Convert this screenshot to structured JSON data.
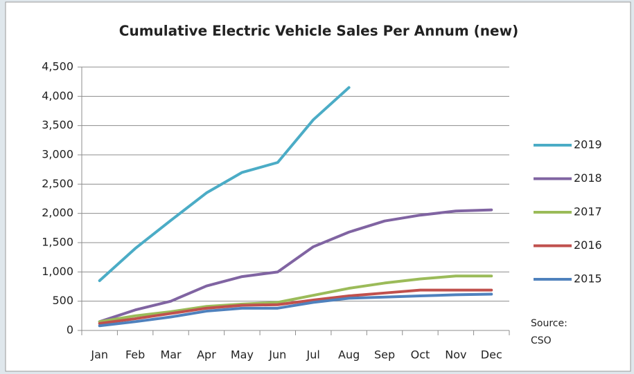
{
  "chart_data": {
    "type": "line",
    "title": "Cumulative Electric Vehicle Sales Per Annum (new)",
    "categories": [
      "Jan",
      "Feb",
      "Mar",
      "Apr",
      "May",
      "Jun",
      "Jul",
      "Aug",
      "Sep",
      "Oct",
      "Nov",
      "Dec"
    ],
    "series": [
      {
        "name": "2019",
        "color": "#4bacc6",
        "values": [
          850,
          1400,
          1880,
          2350,
          2700,
          2870,
          3600,
          4150,
          null,
          null,
          null,
          null
        ]
      },
      {
        "name": "2018",
        "color": "#8064a2",
        "values": [
          150,
          350,
          500,
          760,
          920,
          1000,
          1430,
          1680,
          1870,
          1970,
          2040,
          2060
        ]
      },
      {
        "name": "2017",
        "color": "#9bbb59",
        "values": [
          150,
          250,
          320,
          410,
          450,
          480,
          600,
          720,
          810,
          880,
          930,
          930
        ]
      },
      {
        "name": "2016",
        "color": "#c0504d",
        "values": [
          120,
          200,
          290,
          380,
          430,
          440,
          520,
          590,
          640,
          690,
          690,
          690
        ]
      },
      {
        "name": "2015",
        "color": "#4f81bd",
        "values": [
          80,
          150,
          230,
          330,
          380,
          380,
          480,
          550,
          570,
          590,
          610,
          620
        ]
      }
    ],
    "ylim": [
      0,
      4500
    ],
    "yticks": [
      0,
      500,
      {
        "value": 1000,
        "label": "1,000"
      },
      {
        "value": 1500,
        "label": "1,500"
      },
      {
        "value": 2000,
        "label": "2,000"
      },
      {
        "value": 2500,
        "label": "2,500"
      },
      {
        "value": 3000,
        "label": "3,000"
      },
      {
        "value": 3500,
        "label": "3,500"
      },
      {
        "value": 4000,
        "label": "4,000"
      },
      {
        "value": 4500,
        "label": "4,500"
      }
    ],
    "grid": true,
    "legend": "right",
    "source": [
      "Source:",
      "CSO"
    ]
  }
}
